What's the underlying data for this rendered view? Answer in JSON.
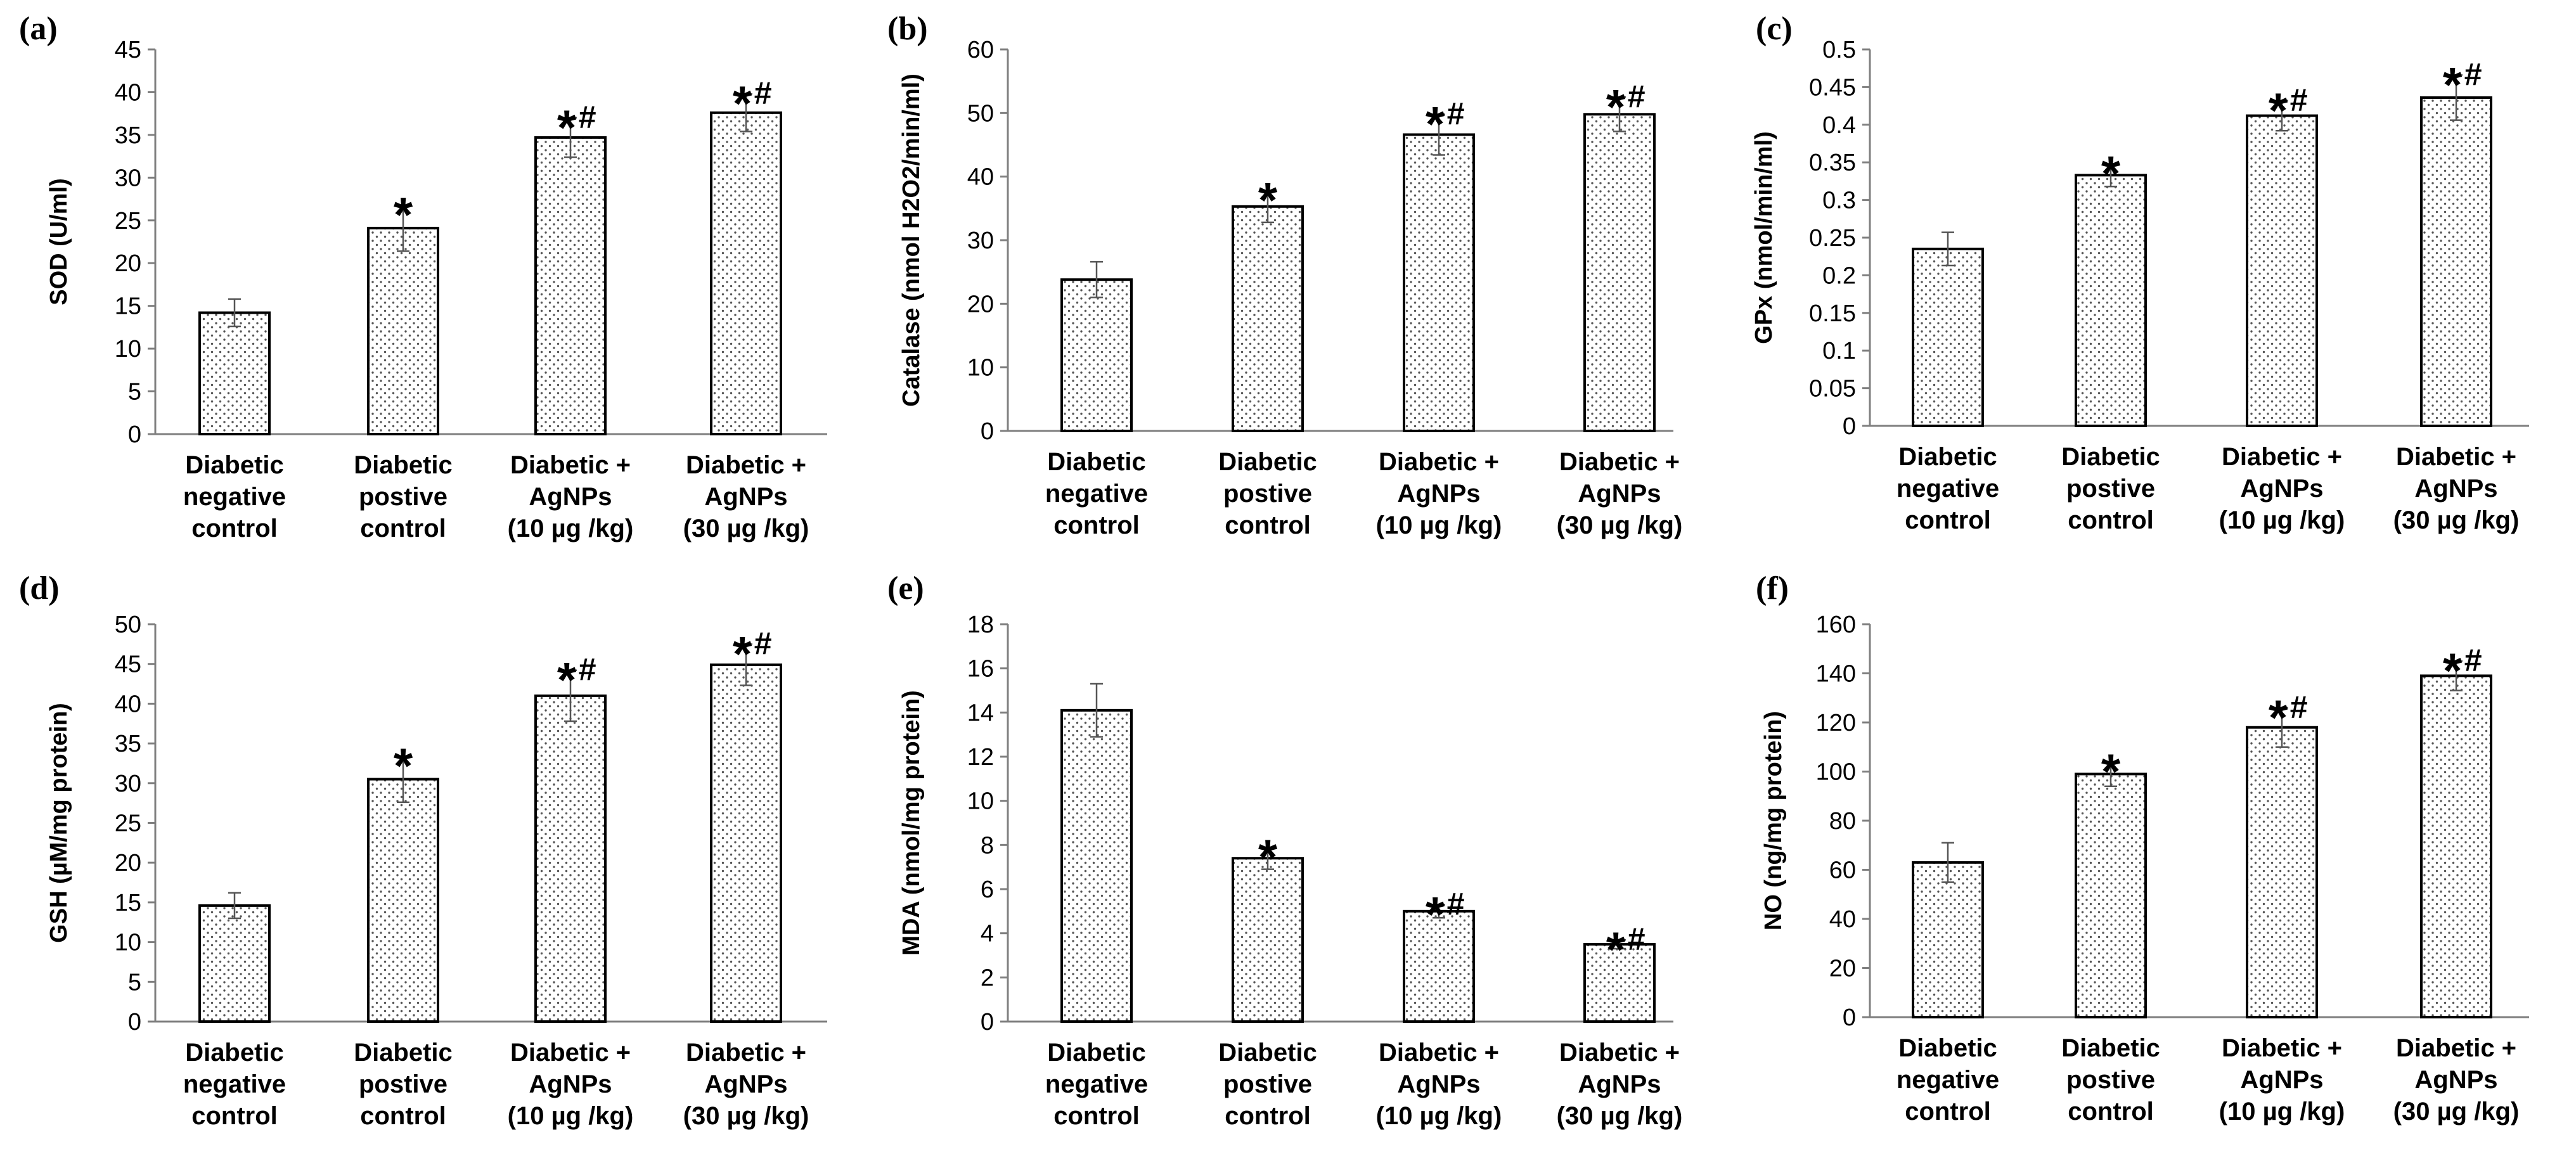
{
  "chart_data": [
    {
      "type": "bar",
      "panel": "(a)",
      "ylabel": "SOD (U/ml)",
      "ylim": [
        0,
        45
      ],
      "ticks": [
        "0",
        "5",
        "10",
        "15",
        "20",
        "25",
        "30",
        "35",
        "40",
        "45"
      ],
      "categories": [
        [
          "Diabetic",
          "negative",
          "control"
        ],
        [
          "Diabetic",
          "postive",
          "control"
        ],
        [
          "Diabetic +",
          "AgNPs",
          "(10 µg /kg)"
        ],
        [
          "Diabetic +",
          "AgNPs",
          "(30 µg /kg)"
        ]
      ],
      "values": [
        14.2,
        24.1,
        34.7,
        37.6
      ],
      "errors": [
        1.6,
        2.7,
        2.3,
        2.2
      ],
      "markers": [
        {
          "star": "",
          "hash": ""
        },
        {
          "star": "*",
          "hash": ""
        },
        {
          "star": "*",
          "hash": "#"
        },
        {
          "star": "*",
          "hash": "#"
        }
      ]
    },
    {
      "type": "bar",
      "panel": "(b)",
      "ylabel": "Catalase (nmol H2O2/min/ml)",
      "ylim": [
        0,
        60
      ],
      "ticks": [
        "0",
        "10",
        "20",
        "30",
        "40",
        "50",
        "60"
      ],
      "categories": [
        [
          "Diabetic",
          "negative",
          "control"
        ],
        [
          "Diabetic",
          "postive",
          "control"
        ],
        [
          "Diabetic +",
          "AgNPs",
          "(10 µg /kg)"
        ],
        [
          "Diabetic +",
          "AgNPs",
          "(30 µg /kg)"
        ]
      ],
      "values": [
        23.8,
        35.3,
        46.6,
        49.8
      ],
      "errors": [
        2.8,
        2.5,
        3.2,
        2.7
      ],
      "markers": [
        {
          "star": "",
          "hash": ""
        },
        {
          "star": "*",
          "hash": ""
        },
        {
          "star": "*",
          "hash": "#"
        },
        {
          "star": "*",
          "hash": "#"
        }
      ]
    },
    {
      "type": "bar",
      "panel": "(c)",
      "ylabel": "GPx (nmol/min/ml)",
      "ylim": [
        0,
        0.5
      ],
      "ticks": [
        "0",
        "0.05",
        "0.1",
        "0.15",
        "0.2",
        "0.25",
        "0.3",
        "0.35",
        "0.4",
        "0.45",
        "0.5"
      ],
      "categories": [
        [
          "Diabetic",
          "negative",
          "control"
        ],
        [
          "Diabetic",
          "postive",
          "control"
        ],
        [
          "Diabetic +",
          "AgNPs",
          "(10 µg /kg)"
        ],
        [
          "Diabetic +",
          "AgNPs",
          "(30 µg /kg)"
        ]
      ],
      "values": [
        0.235,
        0.333,
        0.412,
        0.436
      ],
      "errors": [
        0.022,
        0.015,
        0.02,
        0.03
      ],
      "markers": [
        {
          "star": "",
          "hash": ""
        },
        {
          "star": "*",
          "hash": ""
        },
        {
          "star": "*",
          "hash": "#"
        },
        {
          "star": "*",
          "hash": "#"
        }
      ]
    },
    {
      "type": "bar",
      "panel": "(d)",
      "ylabel": "GSH (µM/mg protein)",
      "ylim": [
        0,
        50
      ],
      "ticks": [
        "0",
        "5",
        "10",
        "15",
        "20",
        "25",
        "30",
        "35",
        "40",
        "45",
        "50"
      ],
      "categories": [
        [
          "Diabetic",
          "negative",
          "control"
        ],
        [
          "Diabetic",
          "postive",
          "control"
        ],
        [
          "Diabetic +",
          "AgNPs",
          "(10 µg /kg)"
        ],
        [
          "Diabetic +",
          "AgNPs",
          "(30 µg /kg)"
        ]
      ],
      "values": [
        14.6,
        30.5,
        41.0,
        44.9
      ],
      "errors": [
        1.6,
        2.9,
        3.2,
        2.6
      ],
      "markers": [
        {
          "star": "",
          "hash": ""
        },
        {
          "star": "*",
          "hash": ""
        },
        {
          "star": "*",
          "hash": "#"
        },
        {
          "star": "*",
          "hash": "#"
        }
      ]
    },
    {
      "type": "bar",
      "panel": "(e)",
      "ylabel": "MDA (nmol/mg protein)",
      "ylim": [
        0,
        18
      ],
      "ticks": [
        "0",
        "2",
        "4",
        "6",
        "8",
        "10",
        "12",
        "14",
        "16",
        "18"
      ],
      "categories": [
        [
          "Diabetic",
          "negative",
          "control"
        ],
        [
          "Diabetic",
          "postive",
          "control"
        ],
        [
          "Diabetic +",
          "AgNPs",
          "(10 µg /kg)"
        ],
        [
          "Diabetic +",
          "AgNPs",
          "(30 µg /kg)"
        ]
      ],
      "values": [
        14.1,
        7.4,
        5.0,
        3.5
      ],
      "errors": [
        1.2,
        0.5,
        0.3,
        0.2
      ],
      "markers": [
        {
          "star": "",
          "hash": ""
        },
        {
          "star": "*",
          "hash": ""
        },
        {
          "star": "*",
          "hash": "#"
        },
        {
          "star": "*",
          "hash": "#"
        }
      ]
    },
    {
      "type": "bar",
      "panel": "(f)",
      "ylabel": "NO (ng/mg protein)",
      "ylim": [
        0,
        160
      ],
      "ticks": [
        "0",
        "20",
        "40",
        "60",
        "80",
        "100",
        "120",
        "140",
        "160"
      ],
      "categories": [
        [
          "Diabetic",
          "negative",
          "control"
        ],
        [
          "Diabetic",
          "postive",
          "control"
        ],
        [
          "Diabetic +",
          "AgNPs",
          "(10 µg /kg)"
        ],
        [
          "Diabetic +",
          "AgNPs",
          "(30 µg /kg)"
        ]
      ],
      "values": [
        63,
        99,
        118,
        139
      ],
      "errors": [
        8,
        5,
        8,
        6
      ],
      "markers": [
        {
          "star": "",
          "hash": ""
        },
        {
          "star": "*",
          "hash": ""
        },
        {
          "star": "*",
          "hash": "#"
        },
        {
          "star": "*",
          "hash": "#"
        }
      ]
    }
  ]
}
